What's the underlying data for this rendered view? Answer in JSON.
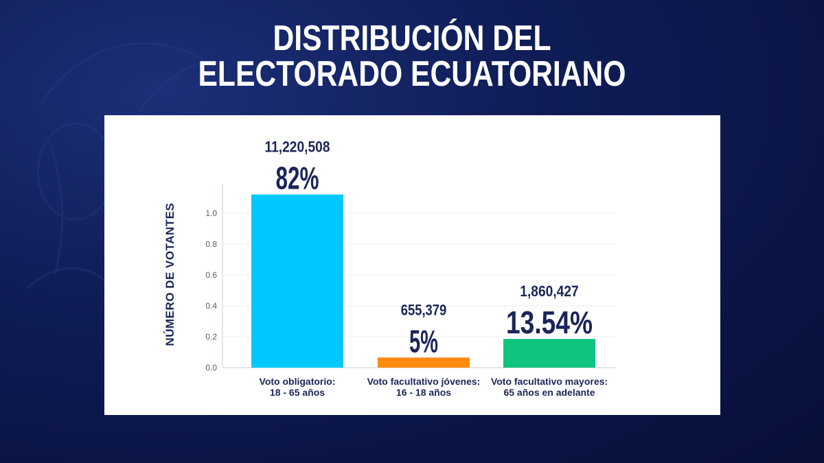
{
  "title": {
    "line1": "DISTRIBUCIÓN DEL",
    "line2": "ELECTORADO ECUATORIANO"
  },
  "colors": {
    "background": "#0f1d57",
    "title_text": "#ffffff",
    "label_text": "#1b2558",
    "bar_1": "#00c8ff",
    "bar_2": "#ff8a0f",
    "bar_3": "#0fc47e"
  },
  "chart_data": {
    "type": "bar",
    "title": "DISTRIBUCIÓN DEL ELECTORADO ECUATORIANO",
    "xlabel": "",
    "ylabel": "NÚMERO DE VOTANTES",
    "ylim": [
      0,
      1.2
    ],
    "yticks": [
      "0.0",
      "0.2",
      "0.4",
      "0.6",
      "0.8",
      "1.0"
    ],
    "grid": true,
    "categories": [
      [
        "Voto obligatorio:",
        "18 - 65 años"
      ],
      [
        "Voto facultativo jóvenes:",
        "16 - 18 años"
      ],
      [
        "Voto facultativo mayores:",
        "65 años en adelante"
      ]
    ],
    "values": [
      1.1220508,
      0.0655379,
      0.1860427
    ],
    "value_labels": [
      "11,220,508",
      "655,379",
      "1,860,427"
    ],
    "percent_labels": [
      "82%",
      "5%",
      "13.54%"
    ],
    "colors": [
      "#00c8ff",
      "#ff8a0f",
      "#0fc47e"
    ]
  }
}
